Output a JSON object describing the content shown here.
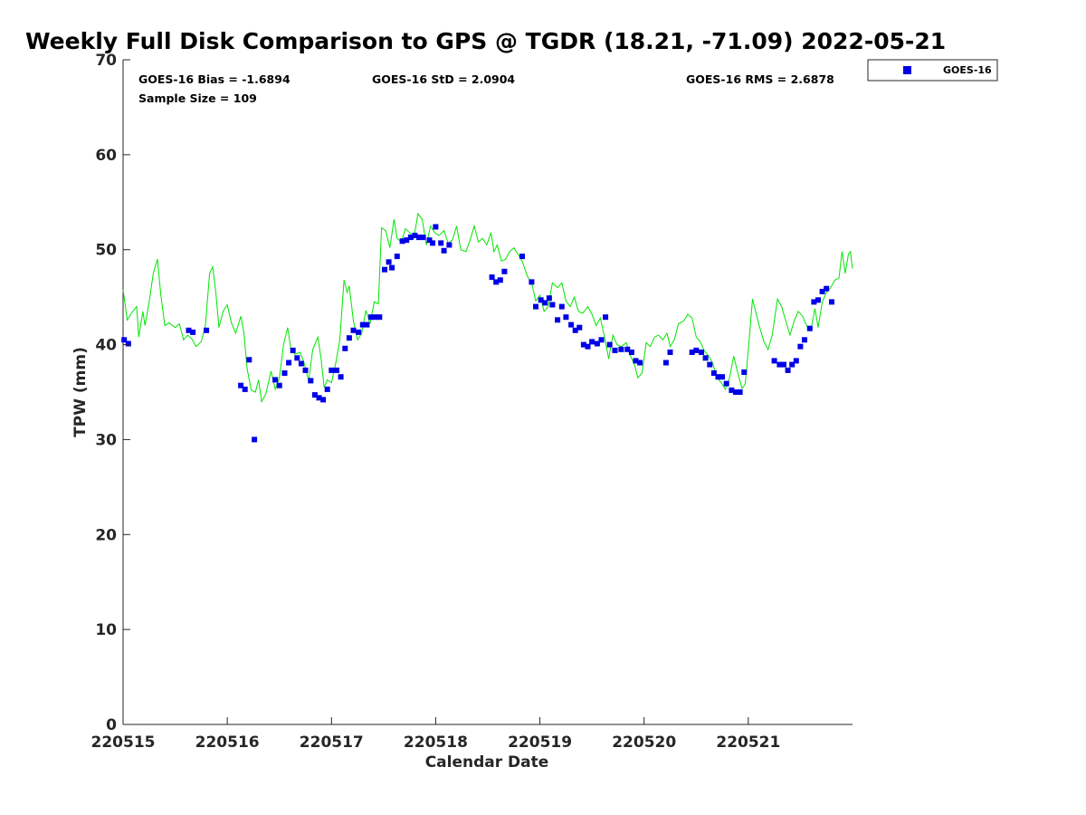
{
  "chart_data": {
    "type": "scatter",
    "title": "Weekly Full Disk Comparison to GPS @ TGDR (18.21, -71.09) 2022-05-21",
    "xlabel": "Calendar Date",
    "ylabel": "TPW (mm)",
    "xlim": [
      0,
      7
    ],
    "ylim": [
      0,
      70
    ],
    "x_unit": "days after 220515 00Z",
    "x_ticks": [
      {
        "value": 0,
        "label": "220515"
      },
      {
        "value": 1,
        "label": "220516"
      },
      {
        "value": 2,
        "label": "220517"
      },
      {
        "value": 3,
        "label": "220518"
      },
      {
        "value": 4,
        "label": "220519"
      },
      {
        "value": 5,
        "label": "220520"
      },
      {
        "value": 6,
        "label": "220521"
      }
    ],
    "y_ticks": [
      {
        "value": 0,
        "label": "0"
      },
      {
        "value": 10,
        "label": "10"
      },
      {
        "value": 20,
        "label": "20"
      },
      {
        "value": 30,
        "label": "30"
      },
      {
        "value": 40,
        "label": "40"
      },
      {
        "value": 50,
        "label": "50"
      },
      {
        "value": 60,
        "label": "60"
      },
      {
        "value": 70,
        "label": "70"
      }
    ],
    "grid": false,
    "legend_position": "top-right",
    "stats": {
      "bias": "GOES-16 Bias = -1.6894",
      "std": "GOES-16 StD = 2.0904",
      "rms": "GOES-16 RMS = 2.6878",
      "sample": "Sample Size = 109"
    },
    "series": [
      {
        "name": "GOES-16",
        "kind": "scatter",
        "marker": "square",
        "color": "#0000e6",
        "points": [
          [
            0.01,
            40.5
          ],
          [
            0.05,
            40.1
          ],
          [
            0.63,
            41.5
          ],
          [
            0.67,
            41.3
          ],
          [
            0.8,
            41.5
          ],
          [
            1.13,
            35.7
          ],
          [
            1.17,
            35.3
          ],
          [
            1.21,
            38.4
          ],
          [
            1.26,
            30.0
          ],
          [
            1.46,
            36.3
          ],
          [
            1.5,
            35.7
          ],
          [
            1.55,
            37.0
          ],
          [
            1.59,
            38.1
          ],
          [
            1.63,
            39.4
          ],
          [
            1.67,
            38.6
          ],
          [
            1.71,
            38.0
          ],
          [
            1.75,
            37.3
          ],
          [
            1.8,
            36.2
          ],
          [
            1.84,
            34.7
          ],
          [
            1.88,
            34.4
          ],
          [
            1.92,
            34.2
          ],
          [
            1.96,
            35.3
          ],
          [
            2.0,
            37.3
          ],
          [
            2.05,
            37.3
          ],
          [
            2.09,
            36.6
          ],
          [
            2.13,
            39.6
          ],
          [
            2.17,
            40.7
          ],
          [
            2.21,
            41.5
          ],
          [
            2.26,
            41.3
          ],
          [
            2.3,
            42.1
          ],
          [
            2.34,
            42.1
          ],
          [
            2.38,
            42.9
          ],
          [
            2.42,
            42.9
          ],
          [
            2.46,
            42.9
          ],
          [
            2.51,
            47.9
          ],
          [
            2.55,
            48.7
          ],
          [
            2.58,
            48.1
          ],
          [
            2.63,
            49.3
          ],
          [
            2.68,
            50.9
          ],
          [
            2.72,
            51.0
          ],
          [
            2.76,
            51.3
          ],
          [
            2.8,
            51.5
          ],
          [
            2.84,
            51.3
          ],
          [
            2.88,
            51.3
          ],
          [
            2.94,
            51.0
          ],
          [
            2.97,
            50.7
          ],
          [
            3.0,
            52.4
          ],
          [
            3.05,
            50.7
          ],
          [
            3.08,
            49.9
          ],
          [
            3.13,
            50.5
          ],
          [
            3.54,
            47.1
          ],
          [
            3.58,
            46.6
          ],
          [
            3.62,
            46.8
          ],
          [
            3.66,
            47.7
          ],
          [
            3.83,
            49.3
          ],
          [
            3.92,
            46.6
          ],
          [
            3.96,
            44.0
          ],
          [
            4.01,
            44.7
          ],
          [
            4.05,
            44.4
          ],
          [
            4.09,
            44.9
          ],
          [
            4.12,
            44.2
          ],
          [
            4.17,
            42.6
          ],
          [
            4.21,
            44.0
          ],
          [
            4.25,
            42.9
          ],
          [
            4.3,
            42.1
          ],
          [
            4.34,
            41.5
          ],
          [
            4.38,
            41.8
          ],
          [
            4.42,
            40.0
          ],
          [
            4.46,
            39.8
          ],
          [
            4.5,
            40.3
          ],
          [
            4.55,
            40.1
          ],
          [
            4.59,
            40.5
          ],
          [
            4.63,
            42.9
          ],
          [
            4.67,
            40.0
          ],
          [
            4.72,
            39.4
          ],
          [
            4.78,
            39.5
          ],
          [
            4.84,
            39.5
          ],
          [
            4.88,
            39.2
          ],
          [
            4.92,
            38.3
          ],
          [
            4.96,
            38.1
          ],
          [
            5.21,
            38.1
          ],
          [
            5.25,
            39.2
          ],
          [
            5.46,
            39.2
          ],
          [
            5.5,
            39.4
          ],
          [
            5.55,
            39.2
          ],
          [
            5.59,
            38.6
          ],
          [
            5.63,
            37.9
          ],
          [
            5.67,
            37.0
          ],
          [
            5.71,
            36.6
          ],
          [
            5.75,
            36.6
          ],
          [
            5.79,
            35.9
          ],
          [
            5.84,
            35.2
          ],
          [
            5.88,
            35.0
          ],
          [
            5.92,
            35.0
          ],
          [
            5.96,
            37.1
          ],
          [
            6.25,
            38.3
          ],
          [
            6.3,
            37.9
          ],
          [
            6.34,
            37.9
          ],
          [
            6.38,
            37.3
          ],
          [
            6.42,
            37.9
          ],
          [
            6.46,
            38.3
          ],
          [
            6.5,
            39.8
          ],
          [
            6.54,
            40.5
          ],
          [
            6.59,
            41.7
          ],
          [
            6.63,
            44.5
          ],
          [
            6.67,
            44.7
          ],
          [
            6.71,
            45.6
          ],
          [
            6.75,
            45.9
          ],
          [
            6.8,
            44.5
          ]
        ]
      },
      {
        "name": "",
        "kind": "line",
        "color": "#00e600",
        "points": [
          [
            0.0,
            45.8
          ],
          [
            0.04,
            42.6
          ],
          [
            0.08,
            43.3
          ],
          [
            0.13,
            44.0
          ],
          [
            0.15,
            40.8
          ],
          [
            0.19,
            43.5
          ],
          [
            0.21,
            42.0
          ],
          [
            0.25,
            44.5
          ],
          [
            0.29,
            47.5
          ],
          [
            0.33,
            49.0
          ],
          [
            0.36,
            45.4
          ],
          [
            0.4,
            42.0
          ],
          [
            0.44,
            42.3
          ],
          [
            0.5,
            41.8
          ],
          [
            0.54,
            42.2
          ],
          [
            0.58,
            40.5
          ],
          [
            0.62,
            41.0
          ],
          [
            0.66,
            40.6
          ],
          [
            0.7,
            39.8
          ],
          [
            0.75,
            40.3
          ],
          [
            0.79,
            42.0
          ],
          [
            0.83,
            47.5
          ],
          [
            0.86,
            48.2
          ],
          [
            0.89,
            45.5
          ],
          [
            0.92,
            41.8
          ],
          [
            0.96,
            43.5
          ],
          [
            1.0,
            44.2
          ],
          [
            1.04,
            42.3
          ],
          [
            1.08,
            41.2
          ],
          [
            1.13,
            43.0
          ],
          [
            1.16,
            41.2
          ],
          [
            1.19,
            37.5
          ],
          [
            1.23,
            35.2
          ],
          [
            1.27,
            35.0
          ],
          [
            1.3,
            36.3
          ],
          [
            1.33,
            34.0
          ],
          [
            1.37,
            34.8
          ],
          [
            1.42,
            37.2
          ],
          [
            1.46,
            35.3
          ],
          [
            1.5,
            36.5
          ],
          [
            1.54,
            40.0
          ],
          [
            1.58,
            41.8
          ],
          [
            1.61,
            39.5
          ],
          [
            1.65,
            39.0
          ],
          [
            1.7,
            39.2
          ],
          [
            1.74,
            38.0
          ],
          [
            1.78,
            36.2
          ],
          [
            1.82,
            39.5
          ],
          [
            1.87,
            40.8
          ],
          [
            1.9,
            38.5
          ],
          [
            1.93,
            35.5
          ],
          [
            1.96,
            36.3
          ],
          [
            2.0,
            36.0
          ],
          [
            2.04,
            38.0
          ],
          [
            2.08,
            40.5
          ],
          [
            2.12,
            46.8
          ],
          [
            2.15,
            45.5
          ],
          [
            2.17,
            46.2
          ],
          [
            2.21,
            42.5
          ],
          [
            2.25,
            40.5
          ],
          [
            2.29,
            41.2
          ],
          [
            2.33,
            43.6
          ],
          [
            2.37,
            42.2
          ],
          [
            2.41,
            44.5
          ],
          [
            2.45,
            44.3
          ],
          [
            2.48,
            52.3
          ],
          [
            2.52,
            52.0
          ],
          [
            2.56,
            50.2
          ],
          [
            2.6,
            53.2
          ],
          [
            2.63,
            51.2
          ],
          [
            2.67,
            50.8
          ],
          [
            2.71,
            52.2
          ],
          [
            2.75,
            51.8
          ],
          [
            2.79,
            51.2
          ],
          [
            2.83,
            53.8
          ],
          [
            2.87,
            53.2
          ],
          [
            2.91,
            50.5
          ],
          [
            2.95,
            52.5
          ],
          [
            2.99,
            51.8
          ],
          [
            3.03,
            51.5
          ],
          [
            3.08,
            52.0
          ],
          [
            3.12,
            50.7
          ],
          [
            3.16,
            51.0
          ],
          [
            3.2,
            52.5
          ],
          [
            3.24,
            50.0
          ],
          [
            3.29,
            49.8
          ],
          [
            3.33,
            51.0
          ],
          [
            3.37,
            52.5
          ],
          [
            3.41,
            50.8
          ],
          [
            3.45,
            51.2
          ],
          [
            3.49,
            50.5
          ],
          [
            3.53,
            51.8
          ],
          [
            3.56,
            49.8
          ],
          [
            3.59,
            50.5
          ],
          [
            3.63,
            48.8
          ],
          [
            3.67,
            49.0
          ],
          [
            3.71,
            49.8
          ],
          [
            3.75,
            50.2
          ],
          [
            3.79,
            49.5
          ],
          [
            3.83,
            48.8
          ],
          [
            3.88,
            47.2
          ],
          [
            3.92,
            46.5
          ],
          [
            3.96,
            44.6
          ],
          [
            4.0,
            45.2
          ],
          [
            4.04,
            43.5
          ],
          [
            4.08,
            44.0
          ],
          [
            4.12,
            46.5
          ],
          [
            4.17,
            46.0
          ],
          [
            4.21,
            46.5
          ],
          [
            4.25,
            44.6
          ],
          [
            4.29,
            44.0
          ],
          [
            4.33,
            45.0
          ],
          [
            4.37,
            43.5
          ],
          [
            4.41,
            43.3
          ],
          [
            4.46,
            44.0
          ],
          [
            4.5,
            43.2
          ],
          [
            4.54,
            42.0
          ],
          [
            4.58,
            42.8
          ],
          [
            4.62,
            40.8
          ],
          [
            4.66,
            38.5
          ],
          [
            4.7,
            41.0
          ],
          [
            4.74,
            40.0
          ],
          [
            4.78,
            39.8
          ],
          [
            4.83,
            40.2
          ],
          [
            4.87,
            38.8
          ],
          [
            4.91,
            37.8
          ],
          [
            4.94,
            36.5
          ],
          [
            4.98,
            37.0
          ],
          [
            5.02,
            40.2
          ],
          [
            5.06,
            39.8
          ],
          [
            5.1,
            40.8
          ],
          [
            5.14,
            41.0
          ],
          [
            5.18,
            40.5
          ],
          [
            5.22,
            41.2
          ],
          [
            5.25,
            39.8
          ],
          [
            5.29,
            40.5
          ],
          [
            5.33,
            42.2
          ],
          [
            5.38,
            42.5
          ],
          [
            5.42,
            43.2
          ],
          [
            5.46,
            42.8
          ],
          [
            5.5,
            40.8
          ],
          [
            5.54,
            40.3
          ],
          [
            5.58,
            39.3
          ],
          [
            5.62,
            38.8
          ],
          [
            5.66,
            38.0
          ],
          [
            5.7,
            36.5
          ],
          [
            5.74,
            36.0
          ],
          [
            5.78,
            35.3
          ],
          [
            5.82,
            36.5
          ],
          [
            5.86,
            38.8
          ],
          [
            5.9,
            37.0
          ],
          [
            5.94,
            35.4
          ],
          [
            5.97,
            35.8
          ],
          [
            6.0,
            39.5
          ],
          [
            6.04,
            44.8
          ],
          [
            6.07,
            43.5
          ],
          [
            6.11,
            41.8
          ],
          [
            6.15,
            40.3
          ],
          [
            6.19,
            39.5
          ],
          [
            6.23,
            41.0
          ],
          [
            6.28,
            44.8
          ],
          [
            6.32,
            44.0
          ],
          [
            6.36,
            42.5
          ],
          [
            6.4,
            41.0
          ],
          [
            6.44,
            42.5
          ],
          [
            6.48,
            43.5
          ],
          [
            6.52,
            43.0
          ],
          [
            6.56,
            42.0
          ],
          [
            6.6,
            41.5
          ],
          [
            6.64,
            43.8
          ],
          [
            6.67,
            41.8
          ],
          [
            6.71,
            44.5
          ],
          [
            6.75,
            45.5
          ],
          [
            6.79,
            46.0
          ],
          [
            6.83,
            46.8
          ],
          [
            6.87,
            47.0
          ],
          [
            6.9,
            49.8
          ],
          [
            6.93,
            47.5
          ],
          [
            6.96,
            49.5
          ],
          [
            6.98,
            49.8
          ],
          [
            7.0,
            48.0
          ]
        ]
      }
    ]
  }
}
